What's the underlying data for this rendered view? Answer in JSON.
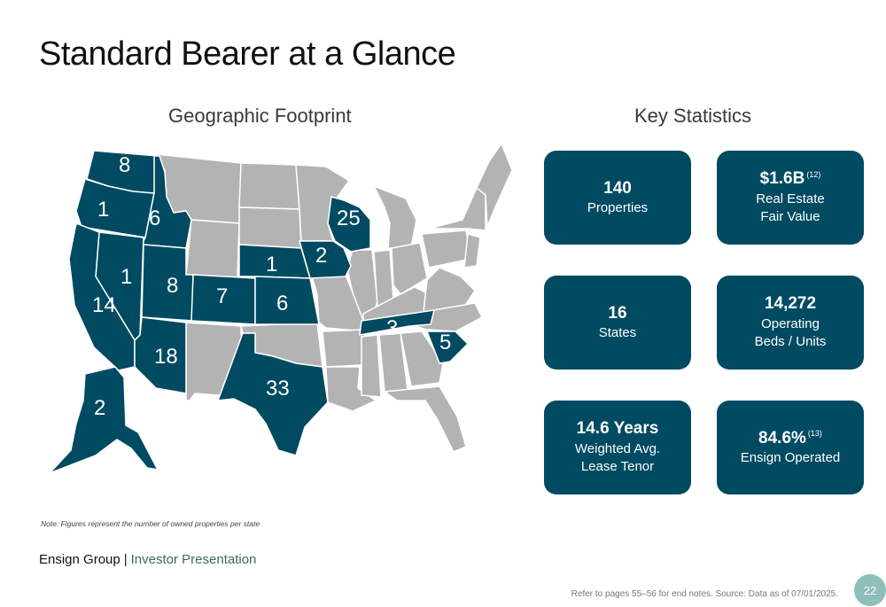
{
  "page": {
    "title": "Standard Bearer at a Glance",
    "map_title": "Geographic Footprint",
    "stats_title": "Key Statistics",
    "note": "Note: Figures represent the number of owned properties per state",
    "footer": {
      "brand": "Ensign Group",
      "separator": "|",
      "subtitle": "Investor Presentation"
    },
    "endnotes": "Refer to pages 55–56 for end notes. Source: Data as of 07/01/2025.",
    "page_number": "22"
  },
  "colors": {
    "teal": "#004a62",
    "gray_state": "#b3b3b3",
    "footer_green": "#3d6e4e",
    "page_badge": "#8cc0b8"
  },
  "map": {
    "states": [
      {
        "state": "WA",
        "count": "8"
      },
      {
        "state": "OR",
        "count": "1"
      },
      {
        "state": "ID",
        "count": "6"
      },
      {
        "state": "NV",
        "count": "1"
      },
      {
        "state": "CA",
        "count": "14"
      },
      {
        "state": "UT",
        "count": "8"
      },
      {
        "state": "CO",
        "count": "7"
      },
      {
        "state": "AZ",
        "count": "18"
      },
      {
        "state": "NE",
        "count": "1"
      },
      {
        "state": "KS",
        "count": "6"
      },
      {
        "state": "IA",
        "count": "2"
      },
      {
        "state": "WI",
        "count": "25"
      },
      {
        "state": "TX",
        "count": "33"
      },
      {
        "state": "TN",
        "count": "3"
      },
      {
        "state": "SC",
        "count": "5"
      },
      {
        "state": "AK",
        "count": "2"
      }
    ]
  },
  "stats": [
    {
      "value": "140",
      "superscript": "",
      "label_line1": "Properties",
      "label_line2": ""
    },
    {
      "value": "$1.6B",
      "superscript": "(12)",
      "label_line1": "Real Estate",
      "label_line2": "Fair Value"
    },
    {
      "value": "16",
      "superscript": "",
      "label_line1": "States",
      "label_line2": ""
    },
    {
      "value": "14,272",
      "superscript": "",
      "label_line1": "Operating",
      "label_line2": "Beds / Units"
    },
    {
      "value": "14.6 Years",
      "superscript": "",
      "label_line1": "Weighted Avg.",
      "label_line2": "Lease Tenor"
    },
    {
      "value": "84.6%",
      "superscript": "(13)",
      "label_line1": "Ensign Operated",
      "label_line2": ""
    }
  ]
}
